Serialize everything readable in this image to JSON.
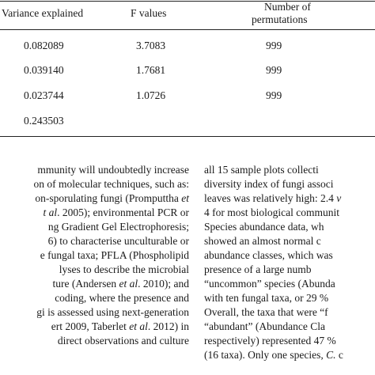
{
  "table": {
    "headers": {
      "variance": "Variance explained",
      "f": "F values",
      "perm_line1": "Number of",
      "perm_line2": "permutations"
    },
    "rows": [
      {
        "variance": "0.082089",
        "f": "3.7083",
        "perm": "999"
      },
      {
        "variance": "0.039140",
        "f": "1.7681",
        "perm": "999"
      },
      {
        "variance": "0.023744",
        "f": "1.0726",
        "perm": "999"
      },
      {
        "variance": "0.243503",
        "f": "",
        "perm": ""
      }
    ]
  },
  "left_column": {
    "lines": [
      {
        "pre": "mmunity will undoubtedly increase",
        "it": "",
        "post": ""
      },
      {
        "pre": "on of molecular techniques, such as:",
        "it": "",
        "post": ""
      },
      {
        "pre": "on-sporulating fungi (Promputtha ",
        "it": "et",
        "post": ""
      },
      {
        "pre": "",
        "it": "t al",
        "post": ". 2005); environmental PCR or"
      },
      {
        "pre": "ng Gradient Gel Electrophoresis;",
        "it": "",
        "post": ""
      },
      {
        "pre": "6) to characterise unculturable or",
        "it": "",
        "post": ""
      },
      {
        "pre": "e fungal taxa; PFLA (Phospholipid",
        "it": "",
        "post": ""
      },
      {
        "pre": "lyses to describe the microbial",
        "it": "",
        "post": ""
      },
      {
        "pre": "ture (Andersen ",
        "it": "et al",
        "post": ". 2010); and"
      },
      {
        "pre": "coding, where the presence and",
        "it": "",
        "post": ""
      },
      {
        "pre": "gi is assessed using next-generation",
        "it": "",
        "post": ""
      },
      {
        "pre": "ert 2009, Taberlet ",
        "it": "et al",
        "post": ". 2012) in"
      },
      {
        "pre": "direct observations and culture",
        "it": "",
        "post": ""
      }
    ]
  },
  "right_column": {
    "lines": [
      {
        "pre": "all 15 sample plots collecti",
        "it": "",
        "post": ""
      },
      {
        "pre": "diversity index of fungi associ",
        "it": "",
        "post": ""
      },
      {
        "pre": "leaves was relatively high: 2.4 ",
        "it": "v",
        "post": ""
      },
      {
        "pre": "4 for most biological communit",
        "it": "",
        "post": ""
      },
      {
        "pre": "Species abundance data, wh",
        "it": "",
        "post": ""
      },
      {
        "pre": "showed an almost normal c",
        "it": "",
        "post": ""
      },
      {
        "pre": "abundance classes, which was",
        "it": "",
        "post": ""
      },
      {
        "pre": "presence of a large numb",
        "it": "",
        "post": ""
      },
      {
        "pre": "“uncommon” species (Abunda",
        "it": "",
        "post": ""
      },
      {
        "pre": "with ten fungal taxa, or 29 %",
        "it": "",
        "post": ""
      },
      {
        "pre": "Overall, the taxa that were “f",
        "it": "",
        "post": ""
      },
      {
        "pre": "“abundant” (Abundance Cla",
        "it": "",
        "post": ""
      },
      {
        "pre": "respectively) represented 47 %",
        "it": "",
        "post": ""
      },
      {
        "pre": "(16 taxa). Only one species, ",
        "it": "C.",
        "post": " c"
      }
    ]
  }
}
